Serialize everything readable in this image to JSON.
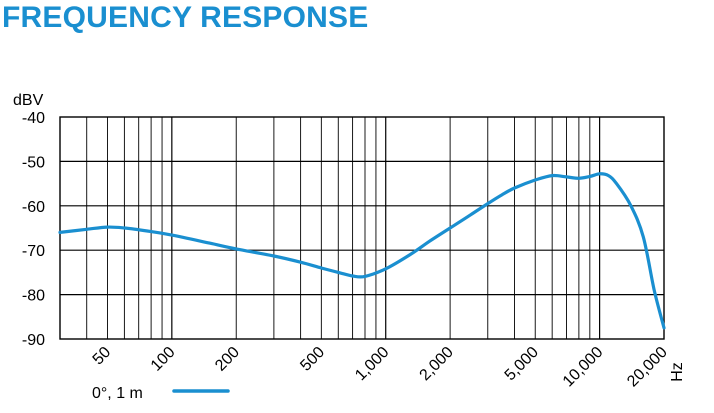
{
  "page": {
    "title": "FREQUENCY RESPONSE"
  },
  "chart_data": {
    "type": "line",
    "title": "FREQUENCY RESPONSE",
    "xlabel": "Hz",
    "ylabel": "dBV",
    "x_scale": "log",
    "xlim": [
      30,
      20000
    ],
    "ylim": [
      -90,
      -40
    ],
    "grid": true,
    "legend_position": "bottom-left",
    "x_tick_labels": [
      {
        "value": 50,
        "label": "50"
      },
      {
        "value": 100,
        "label": "100"
      },
      {
        "value": 200,
        "label": "200"
      },
      {
        "value": 500,
        "label": "500"
      },
      {
        "value": 1000,
        "label": "1,000"
      },
      {
        "value": 2000,
        "label": "2,000"
      },
      {
        "value": 5000,
        "label": "5,000"
      },
      {
        "value": 10000,
        "label": "10,000"
      },
      {
        "value": 20000,
        "label": "20,000"
      }
    ],
    "y_ticks": [
      {
        "value": -40,
        "label": "-40"
      },
      {
        "value": -50,
        "label": "-50"
      },
      {
        "value": -60,
        "label": "-60"
      },
      {
        "value": -70,
        "label": "-70"
      },
      {
        "value": -80,
        "label": "-80"
      },
      {
        "value": -90,
        "label": "-90"
      }
    ],
    "series": [
      {
        "name": "0°, 1 m",
        "color": "#1a8fd0",
        "x": [
          30,
          40,
          50,
          60,
          80,
          100,
          150,
          200,
          300,
          400,
          500,
          600,
          700,
          800,
          1000,
          1300,
          1600,
          2000,
          2500,
          3000,
          3500,
          4000,
          5000,
          6000,
          7000,
          8000,
          9000,
          10000,
          11000,
          12000,
          14000,
          16000,
          18000,
          20000
        ],
        "y": [
          -66,
          -65.3,
          -64.8,
          -65,
          -65.8,
          -66.6,
          -68.4,
          -69.7,
          -71.3,
          -72.7,
          -74,
          -75,
          -75.8,
          -75.9,
          -74.2,
          -71,
          -68,
          -65,
          -62,
          -59.5,
          -57.5,
          -56,
          -54.2,
          -53.2,
          -53.5,
          -53.8,
          -53.4,
          -52.8,
          -53.2,
          -55,
          -60,
          -67,
          -79,
          -87.5
        ]
      }
    ]
  }
}
